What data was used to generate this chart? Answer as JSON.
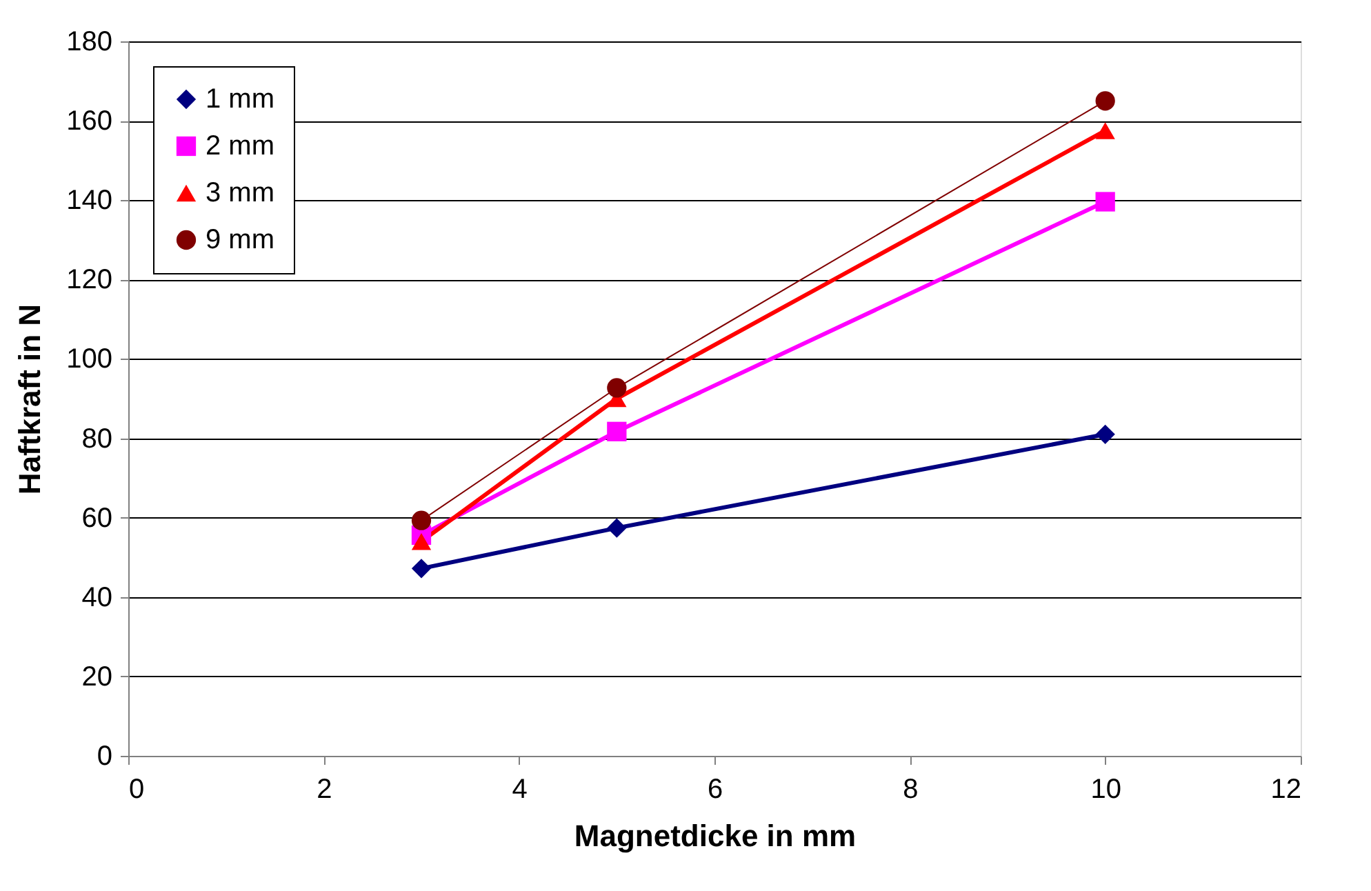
{
  "chart_data": {
    "type": "line",
    "xlabel": "Magnetdicke in mm",
    "ylabel": "Haftkraft in N",
    "xlim": [
      0,
      12
    ],
    "xticks": [
      0,
      2,
      4,
      6,
      8,
      10,
      12
    ],
    "ylim": [
      0,
      180
    ],
    "yticks": [
      0,
      20,
      40,
      60,
      80,
      100,
      120,
      140,
      160,
      180
    ],
    "grid": "y",
    "legend": "top left",
    "line_style": "solid",
    "series": [
      {
        "name": "1 mm",
        "color": "#000080",
        "marker": "diamond",
        "x": [
          3,
          5,
          10
        ],
        "values": [
          47.2,
          57.4,
          81
        ]
      },
      {
        "name": "2 mm",
        "color": "#ff00ff",
        "marker": "square",
        "x": [
          3,
          5,
          10
        ],
        "values": [
          55.6,
          81.7,
          139.6
        ]
      },
      {
        "name": "3 mm",
        "color": "#ff0000",
        "marker": "triangle",
        "x": [
          3,
          5,
          10
        ],
        "values": [
          54,
          90,
          157.5
        ]
      },
      {
        "name": "9 mm",
        "color": "#800000",
        "marker": "circle",
        "x": [
          3,
          5,
          10
        ],
        "values": [
          59.3,
          92.7,
          165
        ]
      }
    ]
  }
}
